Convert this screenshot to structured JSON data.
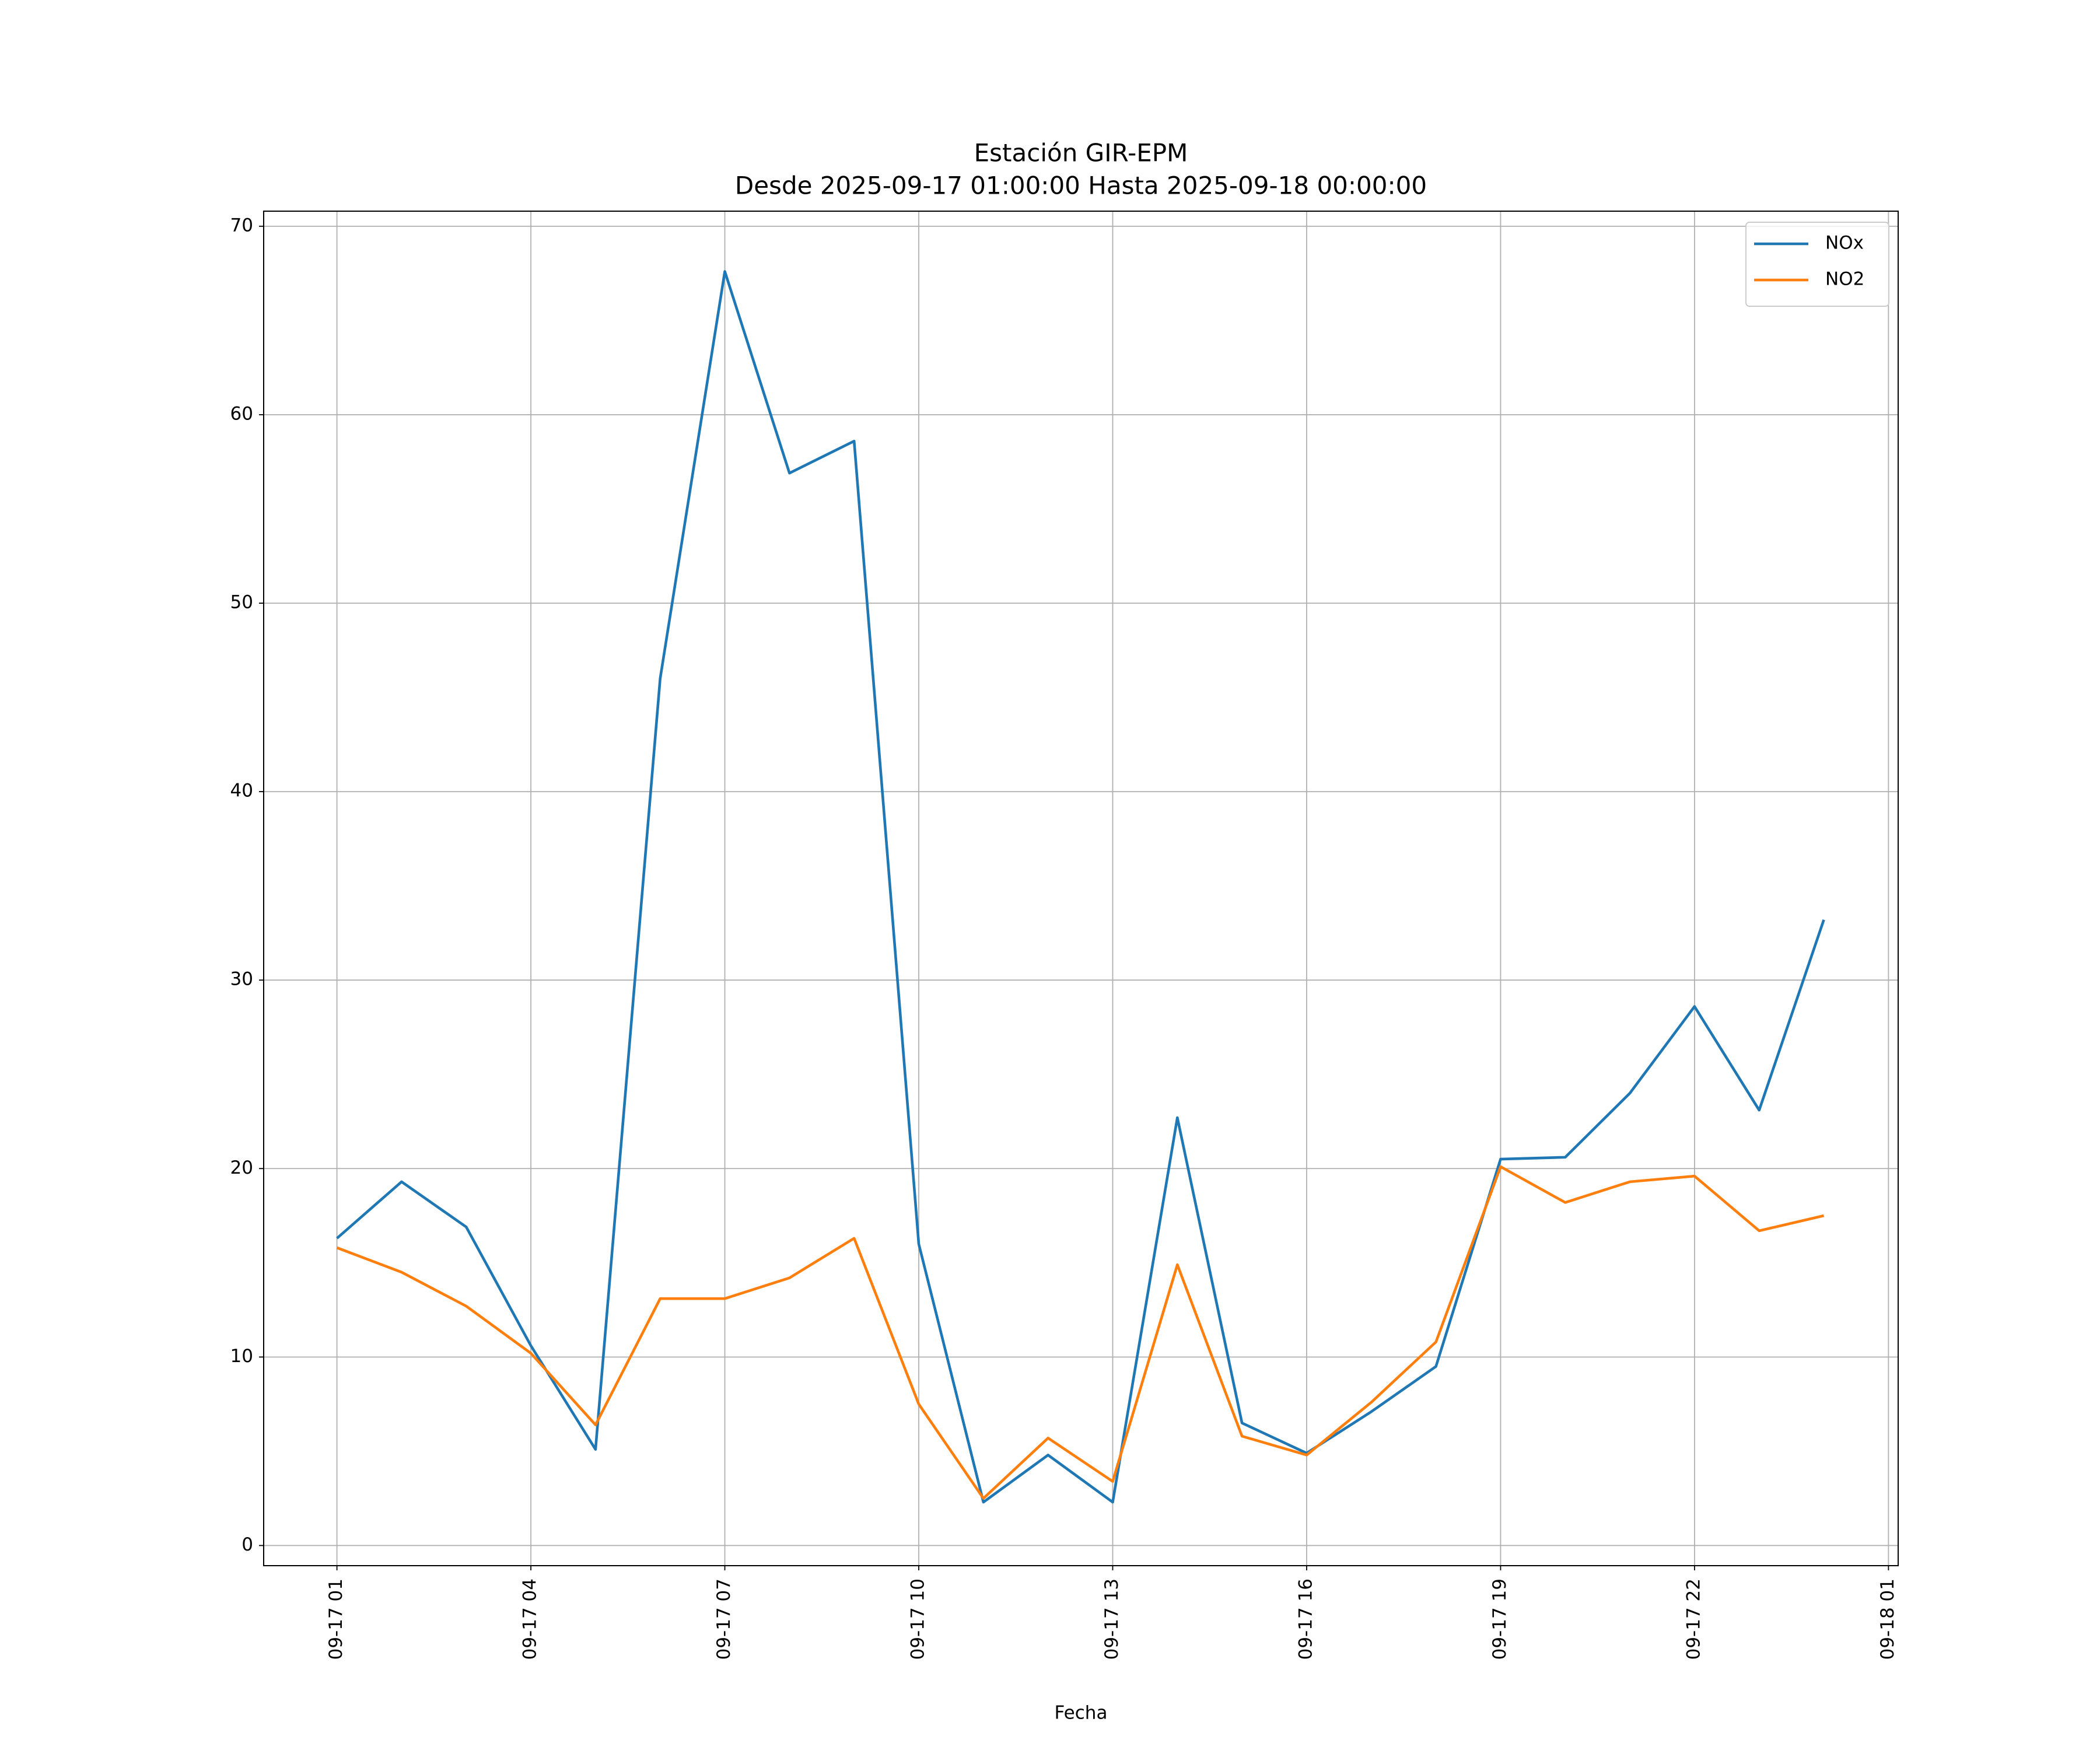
{
  "chart_data": {
    "type": "line",
    "title": "Estación GIR-EPM",
    "subtitle": "Desde 2025-09-17 01:00:00 Hasta 2025-09-18 00:00:00",
    "x_label": "Fecha",
    "x": [
      "09-17 01",
      "09-17 02",
      "09-17 03",
      "09-17 04",
      "09-17 05",
      "09-17 06",
      "09-17 07",
      "09-17 08",
      "09-17 09",
      "09-17 10",
      "09-17 11",
      "09-17 12",
      "09-17 13",
      "09-17 14",
      "09-17 15",
      "09-17 16",
      "09-17 17",
      "09-17 18",
      "09-17 19",
      "09-17 20",
      "09-17 21",
      "09-17 22",
      "09-17 23",
      "09-18 00"
    ],
    "series": [
      {
        "name": "NOx",
        "color": "#1f77b4",
        "values": [
          16.3,
          19.3,
          16.9,
          10.6,
          5.1,
          46.0,
          67.6,
          56.9,
          58.6,
          16.0,
          2.3,
          4.8,
          2.3,
          22.7,
          6.5,
          4.9,
          7.1,
          9.5,
          20.5,
          20.6,
          24.0,
          28.6,
          23.1,
          33.2
        ]
      },
      {
        "name": "NO2",
        "color": "#ff7f0e",
        "values": [
          15.8,
          14.5,
          12.7,
          10.2,
          6.4,
          13.1,
          13.1,
          14.2,
          16.3,
          7.5,
          2.5,
          5.7,
          3.4,
          14.9,
          5.8,
          4.8,
          7.6,
          10.8,
          20.1,
          18.2,
          19.3,
          19.6,
          16.7,
          17.5
        ]
      }
    ],
    "xlim": [
      "09-16 23:52",
      "09-18 01:09"
    ],
    "xticks": [
      "09-17 01",
      "09-17 04",
      "09-17 07",
      "09-17 10",
      "09-17 13",
      "09-17 16",
      "09-17 19",
      "09-17 22",
      "09-18 01"
    ],
    "ylim": [
      -1.07,
      70.8
    ],
    "yticks": [
      0,
      10,
      20,
      30,
      40,
      50,
      60,
      70
    ],
    "grid": true,
    "legend": "upper right"
  }
}
